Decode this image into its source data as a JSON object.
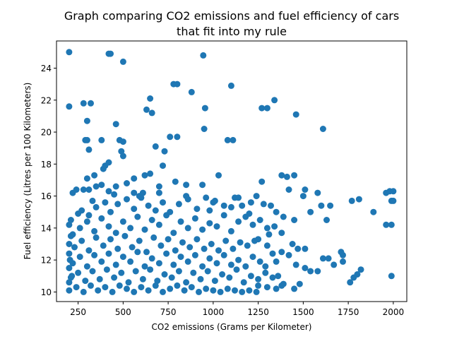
{
  "chart_data": {
    "type": "scatter",
    "title_line1": "Graph comparing CO2 emissions and fuel efficiency of cars",
    "title_line2": "that fit into my rule",
    "xlabel": "CO2 emissions (Grams per Kilometer)",
    "ylabel": "Fuel efficiency (Litres per 100 Kilometers)",
    "xlim": [
      130,
      2075
    ],
    "ylim": [
      9.4,
      25.7
    ],
    "xticks": [
      250,
      500,
      750,
      1000,
      1250,
      1500,
      1750,
      2000
    ],
    "yticks": [
      10,
      12,
      14,
      16,
      18,
      20,
      22,
      24
    ],
    "grid": false,
    "marker_color": "#1f77b4",
    "series": [
      {
        "points": [
          [
            200,
            25.0
          ],
          [
            420,
            24.9
          ],
          [
            430,
            24.9
          ],
          [
            500,
            24.4
          ],
          [
            945,
            24.8
          ],
          [
            200,
            21.6
          ],
          [
            280,
            21.8
          ],
          [
            320,
            21.8
          ],
          [
            630,
            21.4
          ],
          [
            650,
            22.1
          ],
          [
            660,
            21.2
          ],
          [
            955,
            21.5
          ],
          [
            1100,
            22.9
          ],
          [
            1340,
            22.0
          ],
          [
            1270,
            21.5
          ],
          [
            1300,
            21.5
          ],
          [
            1460,
            21.1
          ],
          [
            780,
            23.0
          ],
          [
            800,
            23.0
          ],
          [
            880,
            22.5
          ],
          [
            300,
            20.7
          ],
          [
            460,
            20.5
          ],
          [
            950,
            20.2
          ],
          [
            1610,
            20.2
          ],
          [
            290,
            19.5
          ],
          [
            300,
            19.5
          ],
          [
            380,
            19.5
          ],
          [
            480,
            19.5
          ],
          [
            500,
            19.4
          ],
          [
            760,
            19.7
          ],
          [
            800,
            19.7
          ],
          [
            1080,
            19.5
          ],
          [
            1110,
            19.5
          ],
          [
            680,
            19.1
          ],
          [
            310,
            18.9
          ],
          [
            490,
            18.8
          ],
          [
            500,
            18.5
          ],
          [
            730,
            18.8
          ],
          [
            390,
            17.7
          ],
          [
            400,
            17.9
          ],
          [
            420,
            18.1
          ],
          [
            300,
            17.1
          ],
          [
            340,
            17.3
          ],
          [
            720,
            17.9
          ],
          [
            220,
            16.2
          ],
          [
            240,
            16.4
          ],
          [
            280,
            16.4
          ],
          [
            310,
            16.4
          ],
          [
            350,
            16.6
          ],
          [
            380,
            16.7
          ],
          [
            420,
            16.3
          ],
          [
            460,
            16.6
          ],
          [
            520,
            16.8
          ],
          [
            560,
            17.1
          ],
          [
            620,
            17.3
          ],
          [
            650,
            17.4
          ],
          [
            700,
            16.6
          ],
          [
            790,
            16.9
          ],
          [
            850,
            16.7
          ],
          [
            940,
            16.7
          ],
          [
            1030,
            17.3
          ],
          [
            1270,
            16.9
          ],
          [
            1380,
            17.3
          ],
          [
            1410,
            17.2
          ],
          [
            1450,
            17.3
          ],
          [
            1420,
            16.4
          ],
          [
            1510,
            16.4
          ],
          [
            1580,
            16.2
          ],
          [
            1650,
            15.4
          ],
          [
            1770,
            15.7
          ],
          [
            1810,
            15.8
          ],
          [
            1960,
            16.2
          ],
          [
            1980,
            16.3
          ],
          [
            2000,
            16.3
          ],
          [
            1990,
            15.7
          ],
          [
            2000,
            15.7
          ],
          [
            1890,
            15.0
          ],
          [
            1960,
            14.2
          ],
          [
            1990,
            14.2
          ],
          [
            1600,
            15.4
          ],
          [
            1540,
            15.0
          ],
          [
            1500,
            16.0
          ],
          [
            1390,
            14.7
          ],
          [
            1450,
            14.5
          ],
          [
            1630,
            14.5
          ],
          [
            1440,
            13.0
          ],
          [
            1340,
            14.1
          ],
          [
            1380,
            13.7
          ],
          [
            1470,
            12.7
          ],
          [
            1510,
            12.7
          ],
          [
            1710,
            12.5
          ],
          [
            1720,
            12.3
          ],
          [
            1300,
            12.9
          ],
          [
            1350,
            11.9
          ],
          [
            1380,
            12.5
          ],
          [
            1420,
            12.3
          ],
          [
            1460,
            11.7
          ],
          [
            1510,
            11.5
          ],
          [
            1540,
            11.3
          ],
          [
            1580,
            11.3
          ],
          [
            1610,
            12.1
          ],
          [
            1640,
            12.1
          ],
          [
            1670,
            11.7
          ],
          [
            1720,
            11.9
          ],
          [
            1780,
            10.9
          ],
          [
            1800,
            11.1
          ],
          [
            1820,
            11.4
          ],
          [
            1760,
            10.6
          ],
          [
            1990,
            11.0
          ],
          [
            1480,
            10.5
          ],
          [
            1390,
            10.5
          ],
          [
            1450,
            10.2
          ],
          [
            210,
            14.5
          ],
          [
            270,
            15.1
          ],
          [
            310,
            14.8
          ],
          [
            350,
            15.3
          ],
          [
            400,
            15.6
          ],
          [
            430,
            15.0
          ],
          [
            470,
            15.5
          ],
          [
            520,
            15.8
          ],
          [
            560,
            15.2
          ],
          [
            600,
            15.9
          ],
          [
            640,
            15.4
          ],
          [
            680,
            15.1
          ],
          [
            720,
            15.6
          ],
          [
            760,
            15.0
          ],
          [
            810,
            15.5
          ],
          [
            860,
            15.8
          ],
          [
            910,
            15.2
          ],
          [
            960,
            15.9
          ],
          [
            1010,
            15.7
          ],
          [
            1060,
            15.4
          ],
          [
            1120,
            15.9
          ],
          [
            1160,
            15.4
          ],
          [
            1210,
            15.6
          ],
          [
            1240,
            16.0
          ],
          [
            1280,
            15.5
          ],
          [
            1320,
            15.4
          ],
          [
            220,
            13.6
          ],
          [
            260,
            14.0
          ],
          [
            300,
            14.4
          ],
          [
            340,
            13.8
          ],
          [
            380,
            14.6
          ],
          [
            420,
            14.1
          ],
          [
            460,
            13.7
          ],
          [
            500,
            14.4
          ],
          [
            540,
            14.0
          ],
          [
            580,
            14.7
          ],
          [
            620,
            13.9
          ],
          [
            660,
            14.5
          ],
          [
            700,
            14.2
          ],
          [
            740,
            14.8
          ],
          [
            780,
            13.7
          ],
          [
            820,
            14.4
          ],
          [
            860,
            14.0
          ],
          [
            900,
            14.6
          ],
          [
            940,
            13.9
          ],
          [
            980,
            14.3
          ],
          [
            1020,
            14.1
          ],
          [
            1060,
            14.8
          ],
          [
            1100,
            13.8
          ],
          [
            1140,
            14.4
          ],
          [
            1180,
            14.7
          ],
          [
            1220,
            14.2
          ],
          [
            1260,
            14.5
          ],
          [
            1300,
            14.0
          ],
          [
            230,
            12.8
          ],
          [
            270,
            13.2
          ],
          [
            310,
            12.6
          ],
          [
            350,
            13.4
          ],
          [
            390,
            12.9
          ],
          [
            430,
            13.3
          ],
          [
            470,
            12.7
          ],
          [
            510,
            13.5
          ],
          [
            550,
            12.8
          ],
          [
            590,
            13.2
          ],
          [
            630,
            12.5
          ],
          [
            670,
            13.4
          ],
          [
            710,
            12.9
          ],
          [
            750,
            13.3
          ],
          [
            790,
            12.6
          ],
          [
            830,
            13.1
          ],
          [
            870,
            12.8
          ],
          [
            910,
            13.3
          ],
          [
            950,
            12.7
          ],
          [
            990,
            13.0
          ],
          [
            1030,
            12.6
          ],
          [
            1070,
            13.2
          ],
          [
            1110,
            12.7
          ],
          [
            1150,
            13.1
          ],
          [
            1190,
            12.9
          ],
          [
            1230,
            13.2
          ],
          [
            220,
            11.8
          ],
          [
            260,
            12.2
          ],
          [
            300,
            11.6
          ],
          [
            340,
            12.3
          ],
          [
            380,
            11.9
          ],
          [
            420,
            12.4
          ],
          [
            460,
            11.7
          ],
          [
            500,
            12.2
          ],
          [
            540,
            11.9
          ],
          [
            580,
            12.5
          ],
          [
            620,
            11.6
          ],
          [
            660,
            12.1
          ],
          [
            700,
            11.8
          ],
          [
            740,
            12.4
          ],
          [
            780,
            11.7
          ],
          [
            820,
            12.2
          ],
          [
            860,
            11.9
          ],
          [
            900,
            12.3
          ],
          [
            940,
            11.6
          ],
          [
            980,
            12.1
          ],
          [
            1020,
            11.8
          ],
          [
            1060,
            12.3
          ],
          [
            1100,
            11.7
          ],
          [
            1140,
            12.0
          ],
          [
            1180,
            11.6
          ],
          [
            1220,
            12.2
          ],
          [
            1260,
            11.9
          ],
          [
            210,
            10.9
          ],
          [
            250,
            11.2
          ],
          [
            290,
            10.7
          ],
          [
            330,
            11.3
          ],
          [
            370,
            10.8
          ],
          [
            410,
            11.4
          ],
          [
            450,
            10.9
          ],
          [
            490,
            11.2
          ],
          [
            530,
            10.6
          ],
          [
            570,
            11.3
          ],
          [
            610,
            10.8
          ],
          [
            650,
            11.4
          ],
          [
            690,
            10.7
          ],
          [
            730,
            11.1
          ],
          [
            770,
            10.9
          ],
          [
            810,
            11.3
          ],
          [
            850,
            10.6
          ],
          [
            890,
            11.2
          ],
          [
            930,
            10.8
          ],
          [
            970,
            11.3
          ],
          [
            1010,
            10.7
          ],
          [
            1050,
            11.1
          ],
          [
            1090,
            10.9
          ],
          [
            1130,
            11.4
          ],
          [
            1170,
            10.6
          ],
          [
            1210,
            11.0
          ],
          [
            1250,
            10.8
          ],
          [
            1290,
            11.2
          ],
          [
            200,
            10.1
          ],
          [
            240,
            10.3
          ],
          [
            280,
            10.0
          ],
          [
            320,
            10.4
          ],
          [
            360,
            10.1
          ],
          [
            400,
            10.3
          ],
          [
            440,
            10.0
          ],
          [
            480,
            10.4
          ],
          [
            520,
            10.2
          ],
          [
            560,
            10.0
          ],
          [
            600,
            10.3
          ],
          [
            640,
            10.1
          ],
          [
            680,
            10.4
          ],
          [
            720,
            10.0
          ],
          [
            760,
            10.2
          ],
          [
            800,
            10.4
          ],
          [
            840,
            10.1
          ],
          [
            880,
            10.3
          ],
          [
            920,
            10.0
          ],
          [
            960,
            10.2
          ],
          [
            1000,
            10.1
          ],
          [
            1040,
            10.0
          ],
          [
            1080,
            10.2
          ],
          [
            1120,
            10.1
          ],
          [
            1160,
            10.0
          ],
          [
            1200,
            10.1
          ],
          [
            1240,
            10.0
          ],
          [
            200,
            14.2
          ],
          [
            200,
            13.0
          ],
          [
            200,
            12.4
          ],
          [
            200,
            11.5
          ],
          [
            200,
            10.6
          ],
          [
            210,
            13.5
          ],
          [
            205,
            12.0
          ],
          [
            215,
            11.0
          ],
          [
            250,
            14.9
          ],
          [
            330,
            15.7
          ],
          [
            450,
            16.1
          ],
          [
            560,
            16.2
          ],
          [
            590,
            16.0
          ],
          [
            610,
            16.2
          ],
          [
            700,
            16.2
          ],
          [
            850,
            16.0
          ],
          [
            1000,
            15.6
          ],
          [
            1140,
            15.9
          ],
          [
            1350,
            15.0
          ],
          [
            1200,
            14.9
          ],
          [
            1100,
            15.3
          ],
          [
            980,
            15.1
          ],
          [
            1250,
            13.3
          ],
          [
            1310,
            13.6
          ],
          [
            1330,
            12.4
          ],
          [
            1290,
            11.6
          ],
          [
            1330,
            10.9
          ],
          [
            1360,
            11.0
          ],
          [
            1250,
            10.4
          ],
          [
            1300,
            10.3
          ],
          [
            1350,
            10.2
          ],
          [
            1380,
            10.4
          ]
        ]
      }
    ]
  }
}
